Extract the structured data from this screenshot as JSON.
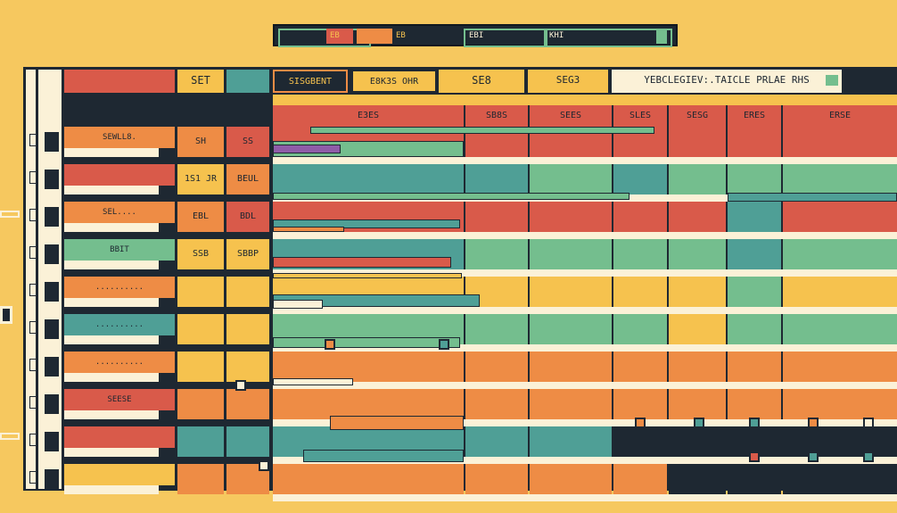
{
  "colors": {
    "background": "#f6c85f",
    "frame": "#1e2832",
    "red": "#d95a4a",
    "orange": "#ee8c45",
    "yellow": "#f6c24e",
    "teal": "#4f9f96",
    "green": "#74be8e",
    "cream": "#fbf1d7"
  },
  "toolbar": {
    "segment_a": "EB",
    "segment_b": "EB",
    "segment_c": "EBI",
    "segment_d": "KHI"
  },
  "header": {
    "col1": "",
    "col2": "SET",
    "col3": "",
    "col4": "SISGBENT",
    "col5": "E8K3S  OHR",
    "col6": "SE8",
    "col7": "SEG3",
    "col8": "YEBCLEGIEV:.TAICLE PRLAE  RHS"
  },
  "subheader": {
    "c1": "E3ES",
    "c2": "SB8S",
    "c3": "SEES",
    "c4": "SLES",
    "c5": "SESG",
    "c6": "ERES",
    "c7": "ERSE"
  },
  "rows": [
    {
      "name": "SEWLL8.",
      "a": "SH",
      "b": "SS"
    },
    {
      "name": "",
      "a": "1S1 JR",
      "b": "BEUL"
    },
    {
      "name": "SEL....",
      "a": "EBL",
      "b": "BDL"
    },
    {
      "name": "BBIT",
      "a": "SSB",
      "b": "SBBP"
    },
    {
      "name": "..........",
      "a": "",
      "b": ""
    },
    {
      "name": "..........",
      "a": "",
      "b": ""
    },
    {
      "name": "..........",
      "a": "",
      "b": ""
    },
    {
      "name": "SEESE",
      "a": "",
      "b": ""
    },
    {
      "name": "",
      "a": "",
      "b": ""
    },
    {
      "name": "",
      "a": "",
      "b": ""
    }
  ]
}
